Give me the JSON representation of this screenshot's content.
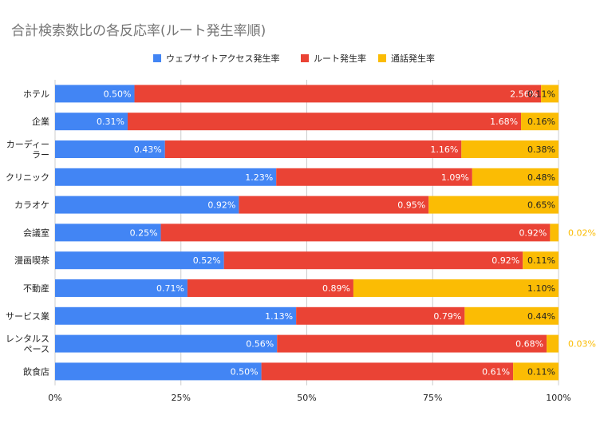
{
  "chart_data": {
    "type": "bar",
    "stacked": "percent",
    "orientation": "horizontal",
    "title": "合計検索数比の各反応率(ルート発生率順)",
    "categories": [
      [
        "ホテル"
      ],
      [
        "企業"
      ],
      [
        "カーディー",
        "ラー"
      ],
      [
        "クリニック"
      ],
      [
        "カラオケ"
      ],
      [
        "会議室"
      ],
      [
        "漫画喫茶"
      ],
      [
        "不動産"
      ],
      [
        "サービス業"
      ],
      [
        "レンタルス",
        "ペース"
      ],
      [
        "飲食店"
      ]
    ],
    "series": [
      {
        "name": "ウェブサイトアクセス発生率",
        "color": "#4285f4",
        "values": [
          0.5,
          0.31,
          0.43,
          1.23,
          0.92,
          0.25,
          0.52,
          0.71,
          1.13,
          0.56,
          0.5
        ],
        "labels": [
          "0.50%",
          "0.31%",
          "0.43%",
          "1.23%",
          "0.92%",
          "0.25%",
          "0.52%",
          "0.71%",
          "1.13%",
          "0.56%",
          "0.50%"
        ]
      },
      {
        "name": "ルート発生率",
        "color": "#ea4335",
        "values": [
          2.56,
          1.68,
          1.16,
          1.09,
          0.95,
          0.92,
          0.92,
          0.89,
          0.79,
          0.68,
          0.61
        ],
        "labels": [
          "2.56%",
          "1.68%",
          "1.16%",
          "1.09%",
          "0.95%",
          "0.92%",
          "0.92%",
          "0.89%",
          "0.79%",
          "0.68%",
          "0.61%"
        ]
      },
      {
        "name": "通話発生率",
        "color": "#fbbc04",
        "values": [
          0.11,
          0.16,
          0.38,
          0.48,
          0.65,
          0.02,
          0.11,
          1.1,
          0.44,
          0.03,
          0.11
        ],
        "labels": [
          "0.11%",
          "0.16%",
          "0.38%",
          "0.48%",
          "0.65%",
          "0.02%",
          "0.11%",
          "1.10%",
          "0.44%",
          "0.03%",
          "0.11%"
        ]
      }
    ],
    "xlim": [
      0,
      100
    ],
    "xticks": [
      "0%",
      "25%",
      "50%",
      "75%",
      "100%"
    ],
    "legend_position": "top",
    "grid": true,
    "colors": {
      "title": "#757575",
      "axis_text": "#222222",
      "grid": "#cccccc",
      "label_light": "#ffffff",
      "label_dark": "#222222"
    }
  }
}
